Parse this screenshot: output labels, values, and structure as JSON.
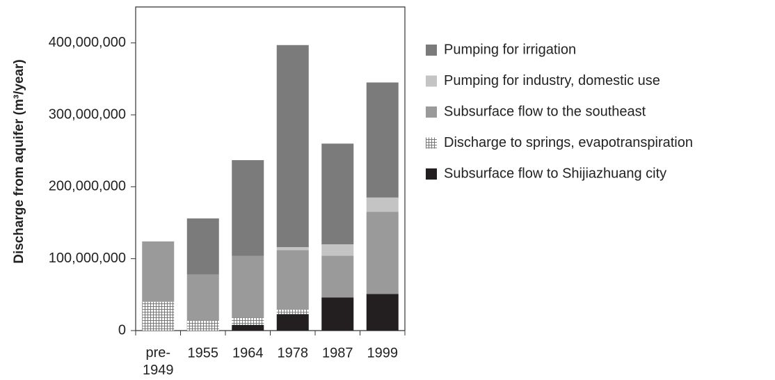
{
  "chart_data": {
    "type": "stacked_bar",
    "y_label": "Discharge from aquifer (m³/year)",
    "categories": [
      "pre-1949",
      "1955",
      "1964",
      "1978",
      "1987",
      "1999"
    ],
    "series": [
      {
        "name": "Subsurface flow to Shijiazhuang city",
        "color": "#231f20",
        "values": [
          0,
          0,
          8000000,
          23000000,
          46000000,
          51000000
        ]
      },
      {
        "name": "Discharge to springs, evapotranspiration",
        "color": "#ffffff",
        "hatch": "grid",
        "values": [
          40000000,
          14000000,
          10000000,
          6000000,
          0,
          0
        ]
      },
      {
        "name": "Subsurface flow to the southeast",
        "color": "#9a9a9a",
        "values": [
          84000000,
          64000000,
          86000000,
          83000000,
          58000000,
          114000000
        ]
      },
      {
        "name": "Pumping for industry, domestic use",
        "color": "#c4c4c4",
        "values": [
          0,
          0,
          0,
          4000000,
          16000000,
          20000000
        ]
      },
      {
        "name": "Pumping for irrigation",
        "color": "#7b7b7b",
        "values": [
          0,
          78000000,
          133000000,
          281000000,
          140000000,
          160000000
        ]
      }
    ],
    "ylim": [
      0,
      450000000
    ],
    "yticks": [
      0,
      {
        "value": 100000000,
        "label": "100,000,000"
      },
      {
        "value": 200000000,
        "label": "200,000,000"
      },
      {
        "value": 300000000,
        "label": "300,000,000"
      },
      {
        "value": 400000000,
        "label": "400,000,000"
      }
    ],
    "legend": "right"
  }
}
